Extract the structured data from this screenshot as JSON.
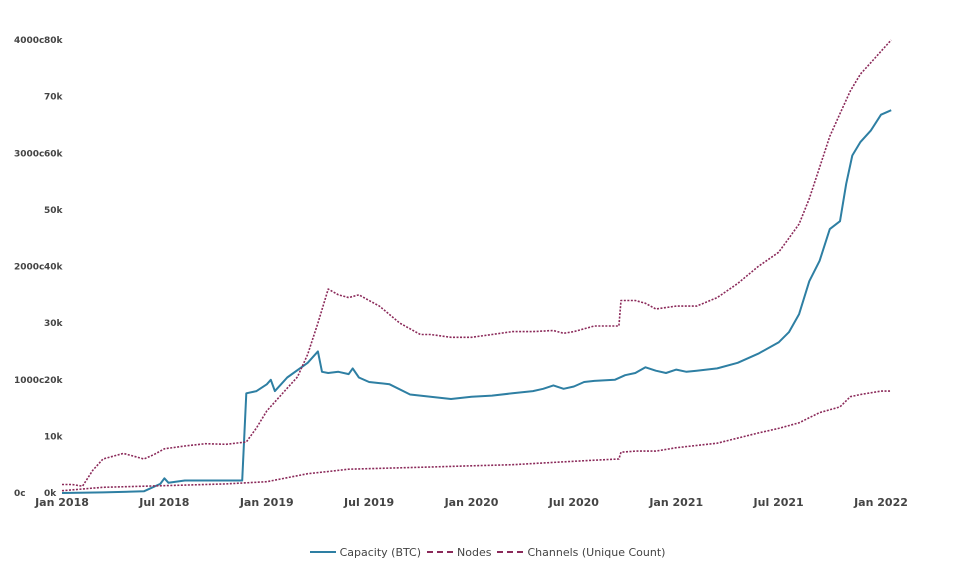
{
  "chart_data": {
    "type": "line",
    "title": "",
    "x_ticks": [
      "Jan 2018",
      "Jul 2018",
      "Jan 2019",
      "Jul 2019",
      "Jan 2020",
      "Jul 2020",
      "Jan 2021",
      "Jul 2021",
      "Jan 2022"
    ],
    "xlim": [
      2018.0,
      2022.1
    ],
    "y_left": {
      "ticks": [
        "0c",
        "1000c",
        "2000c",
        "3000c",
        "4000c"
      ],
      "range": [
        0,
        4000
      ]
    },
    "y_right": {
      "ticks": [
        "0k",
        "10k",
        "20k",
        "30k",
        "40k",
        "50k",
        "60k",
        "70k",
        "80k"
      ],
      "range": [
        0,
        80000
      ]
    },
    "grid": false,
    "legend_position": "bottom",
    "series": [
      {
        "name": "Capacity (BTC)",
        "axis": "left",
        "style": "solid",
        "color": "#2e7fa3",
        "points": [
          [
            2018.0,
            0
          ],
          [
            2018.2,
            5
          ],
          [
            2018.4,
            15
          ],
          [
            2018.48,
            80
          ],
          [
            2018.5,
            130
          ],
          [
            2018.52,
            90
          ],
          [
            2018.6,
            110
          ],
          [
            2018.7,
            110
          ],
          [
            2018.8,
            110
          ],
          [
            2018.88,
            110
          ],
          [
            2018.9,
            880
          ],
          [
            2018.95,
            900
          ],
          [
            2019.0,
            960
          ],
          [
            2019.02,
            1000
          ],
          [
            2019.04,
            900
          ],
          [
            2019.1,
            1020
          ],
          [
            2019.2,
            1150
          ],
          [
            2019.25,
            1250
          ],
          [
            2019.27,
            1070
          ],
          [
            2019.3,
            1060
          ],
          [
            2019.35,
            1070
          ],
          [
            2019.4,
            1050
          ],
          [
            2019.42,
            1100
          ],
          [
            2019.45,
            1020
          ],
          [
            2019.5,
            980
          ],
          [
            2019.55,
            970
          ],
          [
            2019.6,
            960
          ],
          [
            2019.7,
            870
          ],
          [
            2019.8,
            850
          ],
          [
            2019.9,
            830
          ],
          [
            2020.0,
            850
          ],
          [
            2020.1,
            860
          ],
          [
            2020.2,
            880
          ],
          [
            2020.3,
            900
          ],
          [
            2020.35,
            920
          ],
          [
            2020.4,
            950
          ],
          [
            2020.45,
            920
          ],
          [
            2020.5,
            940
          ],
          [
            2020.55,
            980
          ],
          [
            2020.6,
            990
          ],
          [
            2020.7,
            1000
          ],
          [
            2020.75,
            1040
          ],
          [
            2020.8,
            1060
          ],
          [
            2020.85,
            1110
          ],
          [
            2020.9,
            1080
          ],
          [
            2020.95,
            1060
          ],
          [
            2021.0,
            1090
          ],
          [
            2021.05,
            1070
          ],
          [
            2021.1,
            1080
          ],
          [
            2021.2,
            1100
          ],
          [
            2021.3,
            1150
          ],
          [
            2021.4,
            1230
          ],
          [
            2021.5,
            1330
          ],
          [
            2021.55,
            1420
          ],
          [
            2021.6,
            1580
          ],
          [
            2021.65,
            1870
          ],
          [
            2021.7,
            2050
          ],
          [
            2021.75,
            2330
          ],
          [
            2021.8,
            2400
          ],
          [
            2021.83,
            2730
          ],
          [
            2021.86,
            2980
          ],
          [
            2021.9,
            3100
          ],
          [
            2021.95,
            3200
          ],
          [
            2022.0,
            3340
          ],
          [
            2022.05,
            3380
          ]
        ]
      },
      {
        "name": "Nodes",
        "axis": "right",
        "style": "dashed",
        "color": "#8b2a5a",
        "points": [
          [
            2018.0,
            1500
          ],
          [
            2018.05,
            1500
          ],
          [
            2018.1,
            1200
          ],
          [
            2018.15,
            4000
          ],
          [
            2018.2,
            6000
          ],
          [
            2018.3,
            7000
          ],
          [
            2018.35,
            6500
          ],
          [
            2018.4,
            6000
          ],
          [
            2018.45,
            6800
          ],
          [
            2018.5,
            7800
          ],
          [
            2018.6,
            8300
          ],
          [
            2018.7,
            8700
          ],
          [
            2018.8,
            8600
          ],
          [
            2018.9,
            9000
          ],
          [
            2018.95,
            11500
          ],
          [
            2019.0,
            14500
          ],
          [
            2019.1,
            18500
          ],
          [
            2019.15,
            20500
          ],
          [
            2019.2,
            24500
          ],
          [
            2019.25,
            30000
          ],
          [
            2019.3,
            36000
          ],
          [
            2019.35,
            35000
          ],
          [
            2019.4,
            34500
          ],
          [
            2019.45,
            35000
          ],
          [
            2019.5,
            34000
          ],
          [
            2019.55,
            33000
          ],
          [
            2019.6,
            31500
          ],
          [
            2019.65,
            30000
          ],
          [
            2019.7,
            29000
          ],
          [
            2019.75,
            28000
          ],
          [
            2019.8,
            28000
          ],
          [
            2019.9,
            27500
          ],
          [
            2020.0,
            27500
          ],
          [
            2020.1,
            28000
          ],
          [
            2020.2,
            28500
          ],
          [
            2020.3,
            28500
          ],
          [
            2020.4,
            28700
          ],
          [
            2020.45,
            28200
          ],
          [
            2020.5,
            28500
          ],
          [
            2020.6,
            29500
          ],
          [
            2020.7,
            29500
          ],
          [
            2020.72,
            29500
          ],
          [
            2020.73,
            34000
          ],
          [
            2020.8,
            34000
          ],
          [
            2020.85,
            33500
          ],
          [
            2020.9,
            32500
          ],
          [
            2021.0,
            33000
          ],
          [
            2021.1,
            33000
          ],
          [
            2021.2,
            34500
          ],
          [
            2021.3,
            37000
          ],
          [
            2021.35,
            38500
          ],
          [
            2021.4,
            40000
          ],
          [
            2021.5,
            42500
          ],
          [
            2021.55,
            45000
          ],
          [
            2021.6,
            47500
          ],
          [
            2021.65,
            52000
          ],
          [
            2021.7,
            57500
          ],
          [
            2021.75,
            63000
          ],
          [
            2021.8,
            67000
          ],
          [
            2021.85,
            71000
          ],
          [
            2021.9,
            74000
          ],
          [
            2021.95,
            76000
          ],
          [
            2022.0,
            78000
          ],
          [
            2022.05,
            80000
          ]
        ]
      },
      {
        "name": "Channels (Unique Count)",
        "axis": "left",
        "style": "dashed",
        "color": "#8b2a5a",
        "points": [
          [
            2018.0,
            20
          ],
          [
            2018.2,
            50
          ],
          [
            2018.4,
            60
          ],
          [
            2018.6,
            70
          ],
          [
            2018.8,
            80
          ],
          [
            2019.0,
            100
          ],
          [
            2019.2,
            170
          ],
          [
            2019.3,
            190
          ],
          [
            2019.4,
            210
          ],
          [
            2019.6,
            220
          ],
          [
            2019.8,
            230
          ],
          [
            2020.0,
            240
          ],
          [
            2020.2,
            250
          ],
          [
            2020.4,
            270
          ],
          [
            2020.6,
            290
          ],
          [
            2020.72,
            300
          ],
          [
            2020.73,
            360
          ],
          [
            2020.8,
            370
          ],
          [
            2020.9,
            370
          ],
          [
            2021.0,
            400
          ],
          [
            2021.2,
            440
          ],
          [
            2021.4,
            530
          ],
          [
            2021.5,
            570
          ],
          [
            2021.6,
            620
          ],
          [
            2021.7,
            710
          ],
          [
            2021.8,
            760
          ],
          [
            2021.85,
            850
          ],
          [
            2021.9,
            870
          ],
          [
            2022.0,
            900
          ],
          [
            2022.05,
            900
          ]
        ]
      }
    ]
  }
}
